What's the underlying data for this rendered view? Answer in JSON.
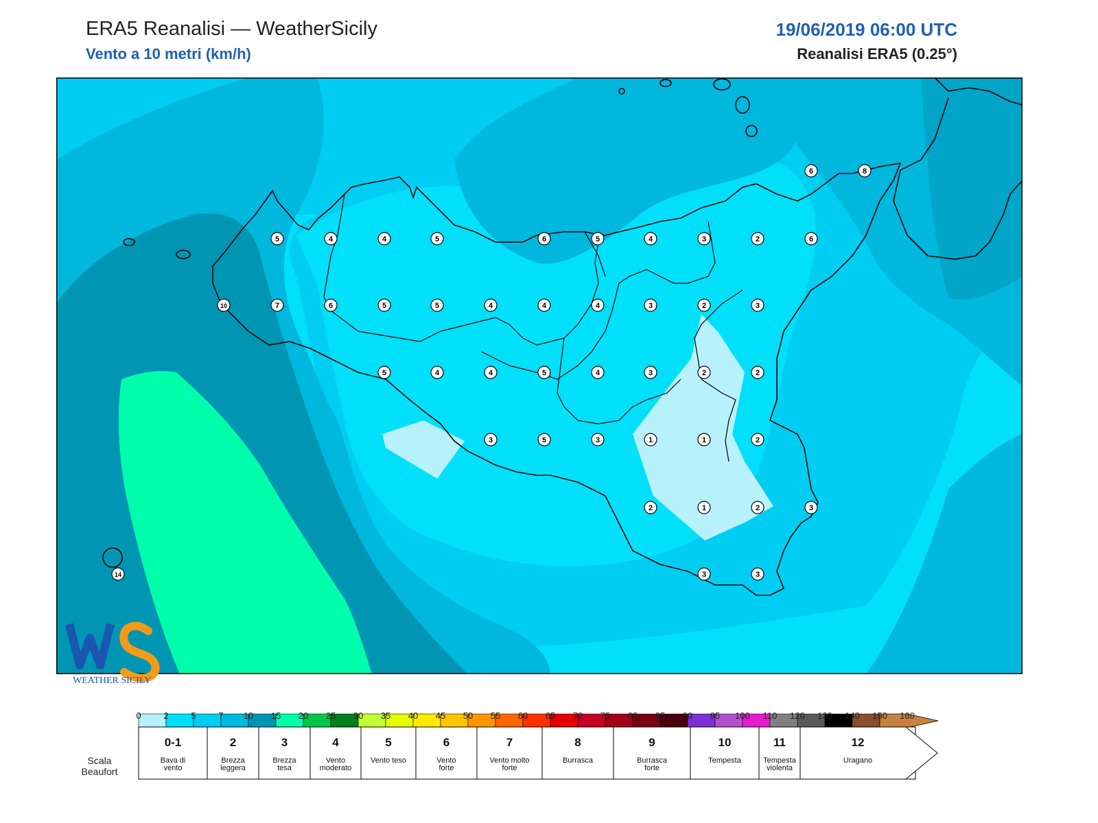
{
  "header": {
    "title": "ERA5 Reanalisi — WeatherSicily",
    "subtitle": "Vento a 10 metri (km/h)",
    "date": "19/06/2019 06:00 UTC",
    "source": "Reanalisi ERA5 (0.25°)"
  },
  "logo": {
    "icon": "weathersicily-logo",
    "text": "WEATHER SICILY"
  },
  "stations": [
    {
      "v": "5"
    },
    {
      "v": "4"
    },
    {
      "v": "4"
    },
    {
      "v": "5"
    },
    {
      "v": "6"
    },
    {
      "v": "5"
    },
    {
      "v": "4"
    },
    {
      "v": "3"
    },
    {
      "v": "2"
    },
    {
      "v": "6"
    },
    {
      "v": "10"
    },
    {
      "v": "7"
    },
    {
      "v": "6"
    },
    {
      "v": "5"
    },
    {
      "v": "5"
    },
    {
      "v": "4"
    },
    {
      "v": "4"
    },
    {
      "v": "4"
    },
    {
      "v": "3"
    },
    {
      "v": "2"
    },
    {
      "v": "3"
    },
    {
      "v": "5"
    },
    {
      "v": "4"
    },
    {
      "v": "4"
    },
    {
      "v": "5"
    },
    {
      "v": "4"
    },
    {
      "v": "3"
    },
    {
      "v": "2"
    },
    {
      "v": "2"
    },
    {
      "v": "3"
    },
    {
      "v": "5"
    },
    {
      "v": "3"
    },
    {
      "v": "1"
    },
    {
      "v": "1"
    },
    {
      "v": "2"
    },
    {
      "v": "2"
    },
    {
      "v": "1"
    },
    {
      "v": "2"
    },
    {
      "v": "3"
    },
    {
      "v": "3"
    },
    {
      "v": "3"
    },
    {
      "v": "14"
    },
    {
      "v": "6"
    },
    {
      "v": "8"
    }
  ],
  "colorbar": {
    "colors": [
      "#b7f1fc",
      "#00e0fb",
      "#00cdf2",
      "#00b7de",
      "#0096b3",
      "#00ffaa",
      "#00c747",
      "#007f1f",
      "#c0ff33",
      "#e6ff00",
      "#ffea00",
      "#ffc400",
      "#ff9600",
      "#ff6600",
      "#ff3000",
      "#e60000",
      "#c80026",
      "#a20016",
      "#7a000f",
      "#4b000b",
      "#7f2fd6",
      "#b44fcf",
      "#e61ad1",
      "#808080",
      "#5a5a5a",
      "#000000",
      "#874f2f",
      "#c88040"
    ],
    "ticks": [
      "0",
      "2",
      "5",
      "7",
      "10",
      "15",
      "20",
      "25",
      "30",
      "35",
      "40",
      "45",
      "50",
      "55",
      "60",
      "65",
      "70",
      "75",
      "80",
      "85",
      "90",
      "95",
      "100",
      "110",
      "120",
      "130",
      "140",
      "150",
      "160"
    ]
  },
  "beaufort": {
    "label_line1": "Scala",
    "label_line2": "Beaufort",
    "cells": [
      {
        "num": "0-1",
        "l1": "Bava di",
        "l2": "vento"
      },
      {
        "num": "2",
        "l1": "Brezza",
        "l2": "leggera"
      },
      {
        "num": "3",
        "l1": "Brezza",
        "l2": "tesa"
      },
      {
        "num": "4",
        "l1": "Vento",
        "l2": "moderato"
      },
      {
        "num": "5",
        "l1": "Vento teso",
        "l2": ""
      },
      {
        "num": "6",
        "l1": "Vento",
        "l2": "forte"
      },
      {
        "num": "7",
        "l1": "Vento molto",
        "l2": "forte"
      },
      {
        "num": "8",
        "l1": "Burrasca",
        "l2": ""
      },
      {
        "num": "9",
        "l1": "Burrasca",
        "l2": "forte"
      },
      {
        "num": "10",
        "l1": "Tempesta",
        "l2": ""
      },
      {
        "num": "11",
        "l1": "Tempesta",
        "l2": "violenta"
      },
      {
        "num": "12",
        "l1": "Uragano",
        "l2": ""
      }
    ]
  }
}
